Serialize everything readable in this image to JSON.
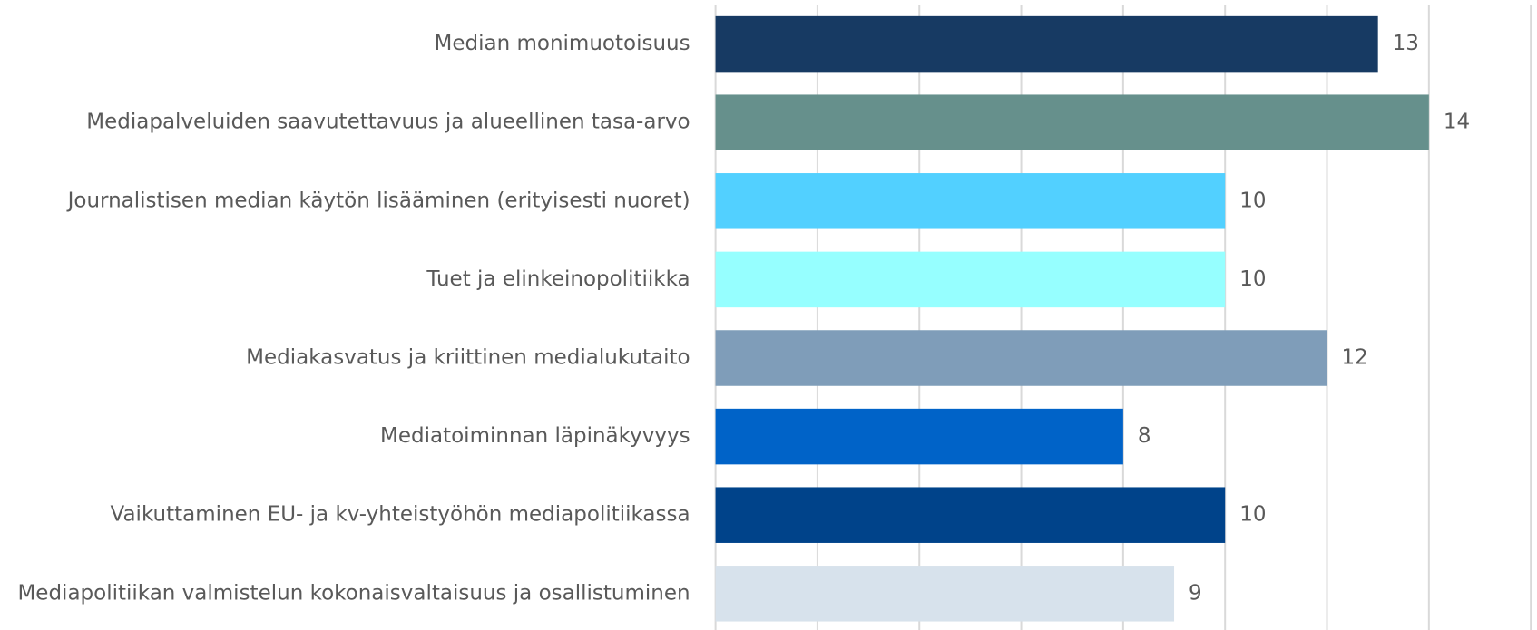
{
  "chart_data": {
    "type": "bar",
    "orientation": "horizontal",
    "categories": [
      "Median monimuotoisuus",
      "Mediapalveluiden saavutettavuus ja alueellinen tasa-arvo",
      "Journalistisen median käytön lisääminen (erityisesti nuoret)",
      "Tuet ja elinkeinopolitiikka",
      "Mediakasvatus ja kriittinen medialukutaito",
      "Mediatoiminnan läpinäkyvyys",
      "Vaikuttaminen EU- ja kv-yhteistyöhön mediapolitiikassa",
      "Mediapolitiikan valmistelun kokonaisvaltaisuus ja osallistuminen"
    ],
    "values": [
      13,
      14,
      10,
      10,
      12,
      8,
      10,
      9
    ],
    "colors": [
      "#173a63",
      "#66908c",
      "#52d0ff",
      "#96ffff",
      "#7f9db9",
      "#0063c8",
      "#00438a",
      "#d7e2ec"
    ],
    "xlim": [
      0,
      16
    ],
    "xticks": [
      0,
      2,
      4,
      6,
      8,
      10,
      12,
      14,
      16
    ],
    "grid": true
  }
}
